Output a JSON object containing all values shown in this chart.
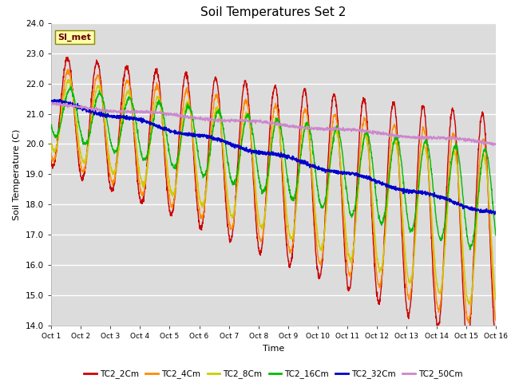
{
  "title": "Soil Temperatures Set 2",
  "xlabel": "Time",
  "ylabel": "Soil Temperature (C)",
  "ylim": [
    14.0,
    24.0
  ],
  "yticks": [
    14.0,
    15.0,
    16.0,
    17.0,
    18.0,
    19.0,
    20.0,
    21.0,
    22.0,
    23.0,
    24.0
  ],
  "xtick_labels": [
    "Oct 1",
    "Oct 2",
    "Oct 3",
    "Oct 4",
    "Oct 5",
    "Oct 6",
    "Oct 7",
    "Oct 8",
    "Oct 9",
    "Oct 10",
    "Oct 11",
    "Oct 12",
    "Oct 13",
    "Oct 14",
    "Oct 15",
    "Oct 16"
  ],
  "annotation_text": "SI_met",
  "legend_labels": [
    "TC2_2Cm",
    "TC2_4Cm",
    "TC2_8Cm",
    "TC2_16Cm",
    "TC2_32Cm",
    "TC2_50Cm"
  ],
  "line_colors": [
    "#cc0000",
    "#ff8c00",
    "#cccc00",
    "#00bb00",
    "#0000cc",
    "#cc88cc"
  ],
  "line_widths": [
    1.0,
    1.0,
    1.0,
    1.0,
    1.2,
    1.0
  ],
  "bg_color": "#dcdcdc",
  "plot_bg_color": "#dcdcdc",
  "n_points": 2160,
  "n_days": 15
}
